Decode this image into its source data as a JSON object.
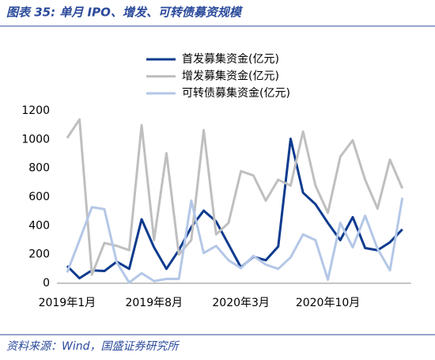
{
  "chart_data": {
    "type": "line",
    "title": "图表 35:  单月 IPO、增发、可转债募资规模",
    "source": "资料来源：Wind，国盛证券研究所",
    "categories": [
      "2019年1月",
      null,
      null,
      null,
      null,
      null,
      null,
      "2019年8月",
      null,
      null,
      null,
      null,
      null,
      null,
      "2020年3月",
      null,
      null,
      null,
      null,
      null,
      null,
      "2020年10月",
      null,
      null,
      null,
      null,
      null,
      null
    ],
    "series": [
      {
        "name": "首发募集资金(亿元)",
        "color": "#0e3b8e",
        "values": [
          120,
          35,
          90,
          85,
          150,
          100,
          445,
          250,
          100,
          230,
          390,
          505,
          430,
          270,
          110,
          185,
          160,
          255,
          1005,
          630,
          550,
          420,
          300,
          460,
          245,
          230,
          285,
          375
        ]
      },
      {
        "name": "增发募集资金(亿元)",
        "color": "#bfbfbf",
        "values": [
          1010,
          1140,
          60,
          280,
          260,
          230,
          1100,
          300,
          905,
          200,
          300,
          1065,
          340,
          420,
          780,
          750,
          575,
          720,
          680,
          1055,
          680,
          490,
          880,
          995,
          720,
          520,
          860,
          660
        ]
      },
      {
        "name": "可转债募集资金(亿元)",
        "color": "#b4c7e7",
        "values": [
          75,
          300,
          530,
          515,
          145,
          5,
          70,
          15,
          30,
          30,
          575,
          210,
          260,
          160,
          105,
          190,
          130,
          100,
          180,
          340,
          300,
          25,
          420,
          250,
          470,
          240,
          90,
          595
        ]
      }
    ],
    "ylim": [
      0,
      1200
    ],
    "yticks": [
      0,
      200,
      400,
      600,
      800,
      1000,
      1200
    ],
    "grid": false,
    "legend": "top"
  }
}
